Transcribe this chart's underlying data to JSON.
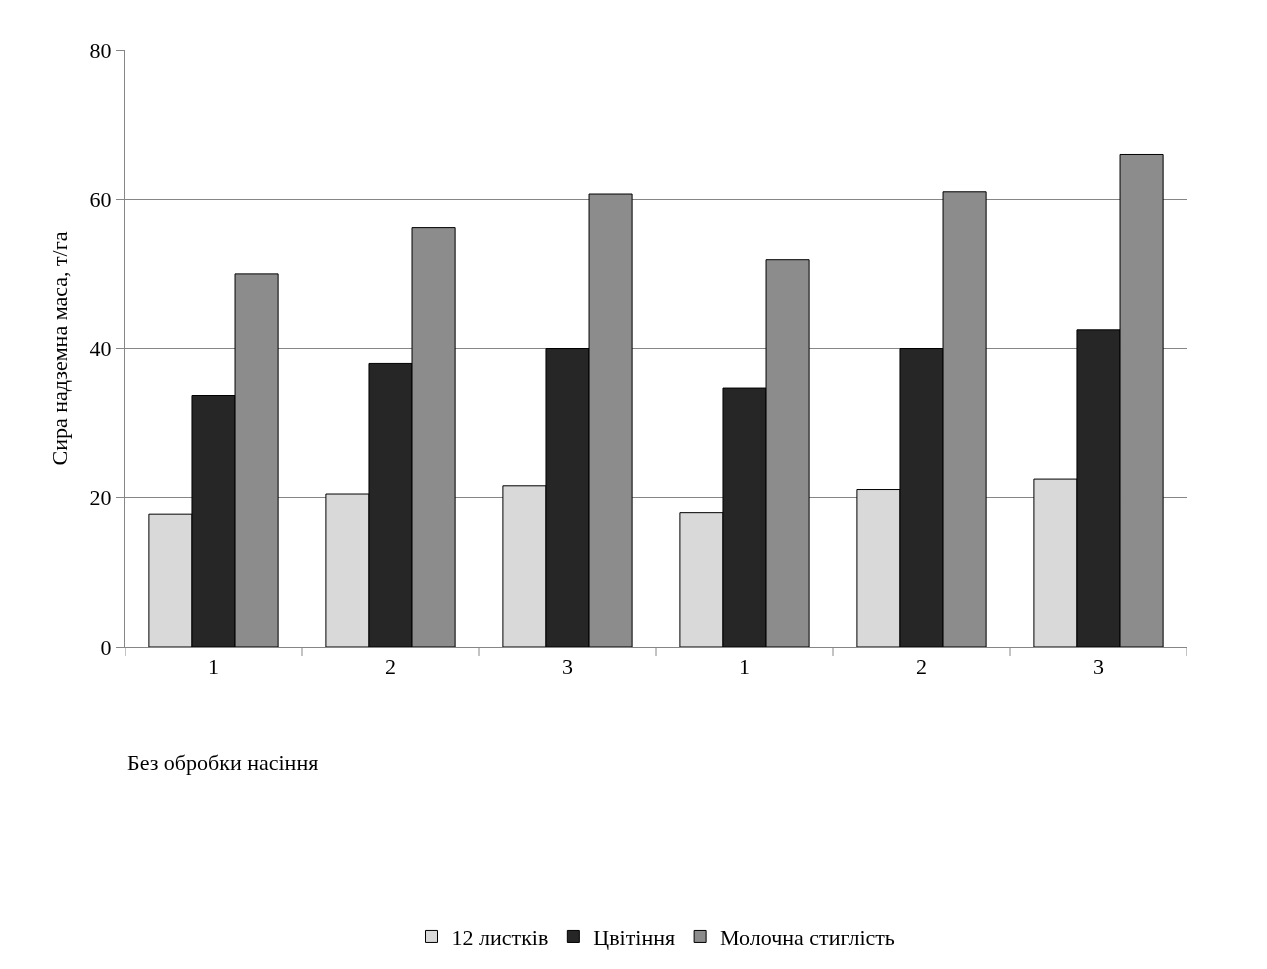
{
  "chart_data": {
    "type": "bar",
    "ylabel": "Сира надземна маса, т/га",
    "categories": [
      "1",
      "2",
      "3",
      "1",
      "2",
      "3"
    ],
    "series": [
      {
        "name": "12 листків",
        "color": "#d9d9d9",
        "values": [
          17.8,
          20.5,
          21.6,
          18.0,
          21.1,
          22.5
        ]
      },
      {
        "name": "Цвітіння",
        "color": "#262626",
        "values": [
          33.7,
          38.0,
          40.0,
          34.7,
          40.0,
          42.5
        ]
      },
      {
        "name": "Молочна стиглість",
        "color": "#8c8c8c",
        "values": [
          50.0,
          56.2,
          60.7,
          51.9,
          61.0,
          66.0
        ]
      }
    ],
    "ylim": [
      0,
      80
    ],
    "yticks": [
      0,
      20,
      40,
      60,
      80
    ],
    "grid": "y",
    "legend": "bottom",
    "annotations": [
      "Без обробки насіння"
    ]
  }
}
